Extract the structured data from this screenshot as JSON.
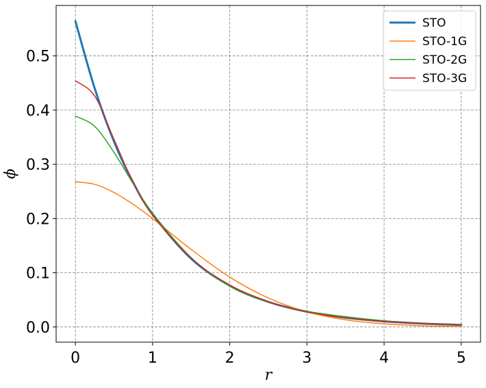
{
  "chart_data": {
    "type": "line",
    "title": "",
    "xlabel": "r",
    "ylabel": "ϕ",
    "xlim": [
      -0.25,
      5.25
    ],
    "ylim": [
      -0.028,
      0.593
    ],
    "xticks": [
      0,
      1,
      2,
      3,
      4,
      5
    ],
    "yticks": [
      0.0,
      0.1,
      0.2,
      0.3,
      0.4,
      0.5
    ],
    "xtick_labels": [
      "0",
      "1",
      "2",
      "3",
      "4",
      "5"
    ],
    "ytick_labels": [
      "0.0",
      "0.1",
      "0.2",
      "0.3",
      "0.4",
      "0.5"
    ],
    "grid": true,
    "legend_position": "upper-right",
    "x": [
      0,
      0.25,
      0.5,
      0.75,
      1.0,
      1.5,
      2.0,
      2.5,
      3.0,
      3.5,
      4.0,
      4.5,
      5.0
    ],
    "series": [
      {
        "name": "STO",
        "color": "#1f77b4",
        "linewidth": 3,
        "values": [
          0.564,
          0.44,
          0.342,
          0.266,
          0.208,
          0.126,
          0.0763,
          0.0463,
          0.0281,
          0.0171,
          0.0103,
          0.0063,
          0.0038
        ]
      },
      {
        "name": "STO-1G",
        "color": "#ff7f0e",
        "linewidth": 1.5,
        "values": [
          0.268,
          0.263,
          0.248,
          0.226,
          0.2,
          0.143,
          0.092,
          0.0535,
          0.028,
          0.0133,
          0.0057,
          0.0022,
          0.0008
        ]
      },
      {
        "name": "STO-2G",
        "color": "#2ca02c",
        "linewidth": 1.5,
        "values": [
          0.389,
          0.37,
          0.322,
          0.264,
          0.21,
          0.128,
          0.075,
          0.0455,
          0.029,
          0.019,
          0.0115,
          0.0068,
          0.004
        ]
      },
      {
        "name": "STO-3G",
        "color": "#d62728",
        "linewidth": 1.5,
        "values": [
          0.454,
          0.426,
          0.346,
          0.266,
          0.206,
          0.127,
          0.0775,
          0.0465,
          0.0278,
          0.0168,
          0.0103,
          0.0064,
          0.0039
        ]
      }
    ]
  }
}
